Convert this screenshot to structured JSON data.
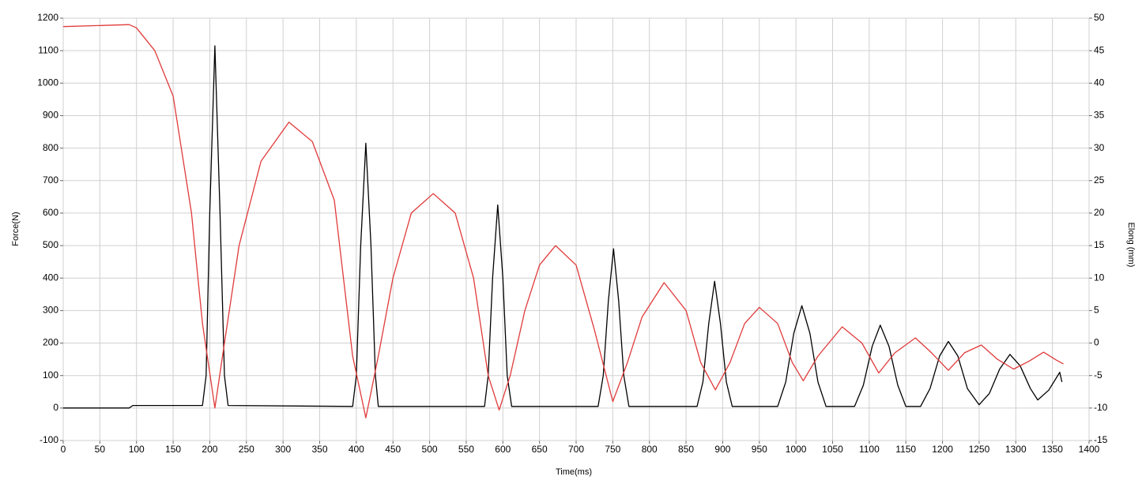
{
  "chart_data": {
    "type": "line",
    "xlabel": "Time(ms)",
    "ylabel": "Force(N)",
    "y2label": "Elong (mm)",
    "xlim": [
      0,
      1400
    ],
    "xticks": [
      0,
      50,
      100,
      150,
      200,
      250,
      300,
      350,
      400,
      450,
      500,
      550,
      600,
      650,
      700,
      750,
      800,
      850,
      900,
      950,
      1000,
      1050,
      1100,
      1150,
      1200,
      1250,
      1300,
      1350,
      1400
    ],
    "ylim": [
      -100,
      1200
    ],
    "yticks": [
      -100,
      0,
      100,
      200,
      300,
      400,
      500,
      600,
      700,
      800,
      900,
      1000,
      1100,
      1200
    ],
    "y2lim": [
      -15,
      50
    ],
    "y2ticks": [
      -15,
      -10,
      -5,
      0,
      5,
      10,
      15,
      20,
      25,
      30,
      35,
      40,
      45,
      50
    ],
    "grid": true,
    "series": [
      {
        "color": "#000000",
        "axis": "y",
        "x": [
          0,
          90,
          95,
          190,
          195,
          200,
          207,
          214,
          220,
          225,
          395,
          400,
          406,
          413,
          420,
          426,
          430,
          575,
          580,
          586,
          593,
          600,
          606,
          612,
          730,
          737,
          744,
          751,
          758,
          765,
          772,
          865,
          873,
          881,
          889,
          897,
          905,
          913,
          975,
          986,
          997,
          1008,
          1019,
          1030,
          1041,
          1080,
          1092,
          1104,
          1115,
          1127,
          1139,
          1150,
          1170,
          1183,
          1196,
          1208,
          1221,
          1234,
          1250,
          1264,
          1278,
          1292,
          1306,
          1320,
          1330,
          1345,
          1360,
          1363
        ],
        "values": [
          0,
          0,
          8,
          8,
          100,
          600,
          1115,
          600,
          100,
          8,
          5,
          100,
          500,
          815,
          500,
          100,
          5,
          5,
          100,
          400,
          625,
          400,
          100,
          5,
          5,
          100,
          330,
          490,
          330,
          100,
          5,
          5,
          80,
          260,
          390,
          260,
          80,
          5,
          5,
          80,
          230,
          315,
          230,
          80,
          5,
          5,
          70,
          190,
          255,
          190,
          70,
          5,
          5,
          60,
          160,
          205,
          160,
          60,
          10,
          45,
          120,
          165,
          130,
          60,
          25,
          55,
          110,
          80
        ]
      },
      {
        "color": "#e03a3a",
        "axis": "y2",
        "x": [
          0,
          90,
          100,
          125,
          150,
          175,
          190,
          207,
          220,
          240,
          270,
          308,
          340,
          370,
          395,
          413,
          430,
          450,
          475,
          505,
          535,
          560,
          580,
          595,
          610,
          630,
          650,
          672,
          700,
          725,
          750,
          770,
          790,
          820,
          850,
          870,
          890,
          910,
          930,
          950,
          975,
          995,
          1010,
          1030,
          1063,
          1090,
          1113,
          1135,
          1163,
          1185,
          1208,
          1230,
          1253,
          1275,
          1297,
          1318,
          1338,
          1355,
          1365
        ],
        "values": [
          48.7,
          49,
          48.5,
          45,
          38,
          20,
          3,
          -10,
          0,
          15,
          28,
          34,
          31,
          22,
          -2,
          -11.5,
          -2,
          10,
          20,
          23,
          20,
          10,
          -5,
          -10.3,
          -5,
          5,
          12,
          15,
          12,
          2,
          -9,
          -3,
          4,
          9.3,
          5,
          -3,
          -7.2,
          -3,
          3,
          5.5,
          3,
          -3,
          -5.8,
          -2,
          2.5,
          0,
          -4.6,
          -1.5,
          0.8,
          -1.5,
          -4.2,
          -1.5,
          -0.3,
          -2.5,
          -4,
          -2.8,
          -1.4,
          -2.6,
          -3.2
        ]
      }
    ]
  }
}
